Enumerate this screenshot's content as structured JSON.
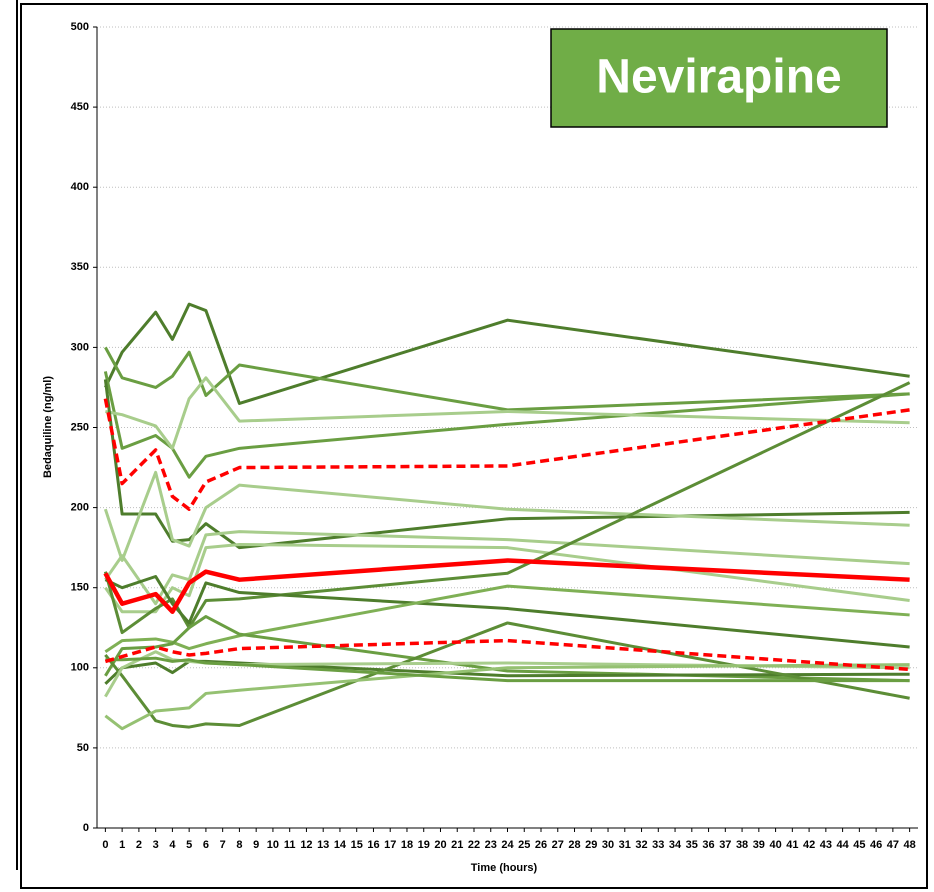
{
  "chart_data": {
    "type": "line",
    "title": "Nevirapine",
    "xlabel": "Time (hours)",
    "ylabel": "Bedaquiline (ng/ml)",
    "x": [
      0,
      1,
      3,
      4,
      5,
      6,
      8,
      24,
      48
    ],
    "xlim": [
      -0.5,
      48.5
    ],
    "xticks": [
      0,
      1,
      2,
      3,
      4,
      5,
      6,
      7,
      8,
      9,
      10,
      11,
      12,
      13,
      14,
      15,
      16,
      17,
      18,
      19,
      20,
      21,
      22,
      23,
      24,
      25,
      26,
      27,
      28,
      29,
      30,
      31,
      32,
      33,
      34,
      35,
      36,
      37,
      38,
      39,
      40,
      41,
      42,
      43,
      44,
      45,
      46,
      47,
      48
    ],
    "ylim": [
      0,
      500
    ],
    "yticks": [
      0,
      50,
      100,
      150,
      200,
      250,
      300,
      350,
      400,
      450,
      500
    ],
    "grid": true,
    "series": [
      {
        "color": "#4e7d2c",
        "values": [
          275,
          297,
          322,
          305,
          327,
          323,
          265,
          317,
          282
        ]
      },
      {
        "color": "#6a9e42",
        "values": [
          300,
          281,
          275,
          282,
          297,
          270,
          289,
          261,
          271
        ]
      },
      {
        "color": "#6a9e42",
        "values": [
          285,
          237,
          245,
          237,
          219,
          232,
          237,
          252,
          271
        ]
      },
      {
        "color": "#a8cd8c",
        "values": [
          260,
          258,
          251,
          237,
          268,
          281,
          254,
          260,
          253
        ]
      },
      {
        "color": "#4e7d2c",
        "values": [
          280,
          196,
          196,
          179,
          180,
          190,
          175,
          193,
          197
        ]
      },
      {
        "color": "#a8cd8c",
        "values": [
          199,
          167,
          222,
          180,
          176,
          200,
          214,
          199,
          189
        ]
      },
      {
        "color": "#a8cd8c",
        "values": [
          155,
          170,
          140,
          158,
          155,
          183,
          185,
          180,
          165
        ]
      },
      {
        "color": "#a8cd8c",
        "values": [
          150,
          135,
          135,
          150,
          145,
          175,
          177,
          175,
          142
        ]
      },
      {
        "color": "#5c8d36",
        "values": [
          160,
          122,
          137,
          143,
          125,
          142,
          143,
          159,
          278
        ]
      },
      {
        "color": "#4e7d2c",
        "values": [
          155,
          150,
          157,
          140,
          128,
          153,
          147,
          137,
          113
        ]
      },
      {
        "color": "#7fb055",
        "values": [
          110,
          117,
          118,
          116,
          112,
          115,
          120,
          151,
          133
        ]
      },
      {
        "color": "#6a9e42",
        "values": [
          95,
          112,
          113,
          115,
          125,
          132,
          121,
          98,
          92
        ]
      },
      {
        "color": "#4e7d2c",
        "values": [
          90,
          100,
          103,
          97,
          104,
          104,
          103,
          95,
          96
        ]
      },
      {
        "color": "#5c8d36",
        "values": [
          108,
          95,
          67,
          64,
          63,
          65,
          64,
          128,
          81
        ]
      },
      {
        "color": "#a8cd8c",
        "values": [
          82,
          100,
          110,
          105,
          104,
          103,
          102,
          103,
          100
        ]
      },
      {
        "color": "#95c172",
        "values": [
          70,
          62,
          73,
          74,
          75,
          84,
          86,
          100,
          102
        ]
      },
      {
        "color": "#6a9e42",
        "values": [
          105,
          105,
          106,
          104,
          105,
          103,
          102,
          92,
          92
        ]
      },
      {
        "color": "#ff0000",
        "style": "dashed",
        "values": [
          268,
          215,
          236,
          207,
          199,
          216,
          225,
          226,
          261
        ]
      },
      {
        "color": "#ff0000",
        "style": "solid-bold",
        "values": [
          159,
          140,
          146,
          135,
          153,
          160,
          155,
          167,
          155
        ]
      },
      {
        "color": "#ff0000",
        "style": "dashed",
        "values": [
          104,
          107,
          113,
          110,
          108,
          109,
          112,
          117,
          99
        ]
      }
    ]
  }
}
